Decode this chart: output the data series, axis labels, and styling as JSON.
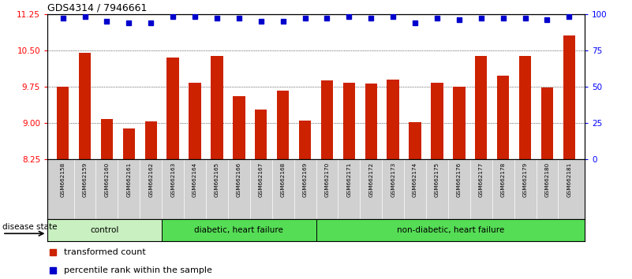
{
  "title": "GDS4314 / 7946661",
  "samples": [
    "GSM662158",
    "GSM662159",
    "GSM662160",
    "GSM662161",
    "GSM662162",
    "GSM662163",
    "GSM662164",
    "GSM662165",
    "GSM662166",
    "GSM662167",
    "GSM662168",
    "GSM662169",
    "GSM662170",
    "GSM662171",
    "GSM662172",
    "GSM662173",
    "GSM662174",
    "GSM662175",
    "GSM662176",
    "GSM662177",
    "GSM662178",
    "GSM662179",
    "GSM662180",
    "GSM662181"
  ],
  "bar_values": [
    9.75,
    10.45,
    9.07,
    8.88,
    9.03,
    10.35,
    9.82,
    10.38,
    9.55,
    9.27,
    9.67,
    9.05,
    9.87,
    9.83,
    9.81,
    9.9,
    9.02,
    9.83,
    9.75,
    10.38,
    9.97,
    10.38,
    9.73,
    10.8
  ],
  "percentile_values": [
    97,
    98,
    95,
    94,
    94,
    98,
    98,
    97,
    97,
    95,
    95,
    97,
    97,
    98,
    97,
    98,
    94,
    97,
    96,
    97,
    97,
    97,
    96,
    98
  ],
  "ylim_left": [
    8.25,
    11.25
  ],
  "ylim_right": [
    0,
    100
  ],
  "yticks_left": [
    8.25,
    9.0,
    9.75,
    10.5,
    11.25
  ],
  "yticks_right": [
    0,
    25,
    50,
    75,
    100
  ],
  "bar_color": "#cc2200",
  "dot_color": "#0000cc",
  "group_defs": [
    {
      "start": 0,
      "end": 5,
      "label": "control",
      "color": "#c8f0c0"
    },
    {
      "start": 5,
      "end": 12,
      "label": "diabetic, heart failure",
      "color": "#55dd55"
    },
    {
      "start": 12,
      "end": 24,
      "label": "non-diabetic, heart failure",
      "color": "#55dd55"
    }
  ],
  "legend_bar_label": "transformed count",
  "legend_dot_label": "percentile rank within the sample",
  "disease_state_label": "disease state",
  "tick_bg_color": "#d0d0d0",
  "plot_bg_color": "#ffffff",
  "border_color": "#000000"
}
